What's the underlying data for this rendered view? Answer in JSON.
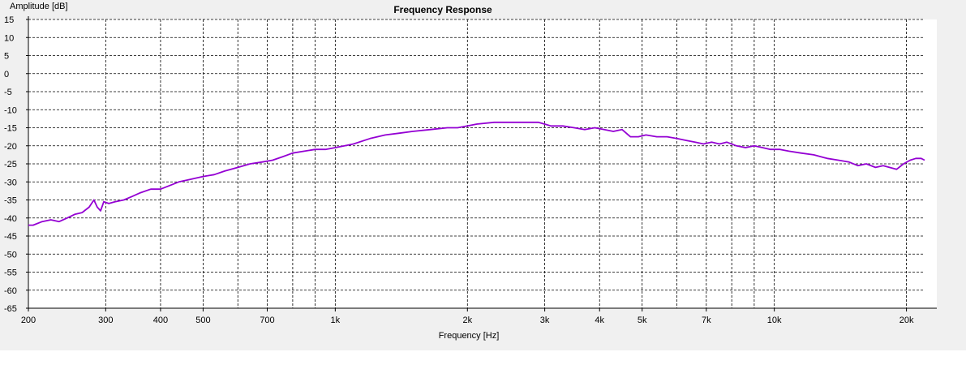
{
  "chart_data": {
    "type": "line",
    "title": "Frequency Response",
    "xlabel": "Frequency [Hz]",
    "ylabel": "Amplitude [dB]",
    "x_scale": "log",
    "xlim": [
      200,
      22000
    ],
    "ylim": [
      -65,
      15
    ],
    "grid": true,
    "y_ticks": [
      15,
      10,
      5,
      0,
      -5,
      -10,
      -15,
      -20,
      -25,
      -30,
      -35,
      -40,
      -45,
      -50,
      -55,
      -60,
      -65
    ],
    "x_ticks": [
      {
        "value": 200,
        "label": "200"
      },
      {
        "value": 300,
        "label": "300"
      },
      {
        "value": 400,
        "label": "400"
      },
      {
        "value": 500,
        "label": "500"
      },
      {
        "value": 700,
        "label": "700"
      },
      {
        "value": 1000,
        "label": "1k"
      },
      {
        "value": 2000,
        "label": "2k"
      },
      {
        "value": 3000,
        "label": "3k"
      },
      {
        "value": 4000,
        "label": "4k"
      },
      {
        "value": 5000,
        "label": "5k"
      },
      {
        "value": 7000,
        "label": "7k"
      },
      {
        "value": 10000,
        "label": "10k"
      },
      {
        "value": 20000,
        "label": "20k"
      }
    ],
    "x_gridlines": [
      200,
      300,
      400,
      500,
      600,
      700,
      800,
      900,
      1000,
      2000,
      3000,
      4000,
      5000,
      6000,
      7000,
      8000,
      9000,
      10000,
      20000
    ],
    "series": [
      {
        "color": "#9400d3",
        "x": [
          200,
          205,
          215,
          225,
          235,
          245,
          255,
          265,
          275,
          282,
          287,
          292,
          297,
          305,
          315,
          330,
          345,
          360,
          380,
          400,
          420,
          440,
          460,
          480,
          500,
          530,
          560,
          600,
          640,
          680,
          720,
          760,
          800,
          850,
          900,
          950,
          1000,
          1050,
          1100,
          1200,
          1300,
          1400,
          1500,
          1650,
          1800,
          1900,
          2000,
          2100,
          2300,
          2500,
          2700,
          2900,
          3000,
          3100,
          3300,
          3500,
          3700,
          3900,
          4100,
          4300,
          4500,
          4700,
          4900,
          5100,
          5400,
          5700,
          6000,
          6300,
          6600,
          6900,
          7200,
          7500,
          7800,
          8200,
          8600,
          9000,
          9400,
          9800,
          10300,
          10800,
          11500,
          12300,
          13200,
          14000,
          14800,
          15500,
          16200,
          17000,
          17700,
          18300,
          19000,
          19700,
          20400,
          21000,
          21600,
          22000
        ],
        "y": [
          -42,
          -42,
          -41,
          -40.5,
          -41,
          -40,
          -39,
          -38.5,
          -37,
          -35,
          -37,
          -38,
          -35.5,
          -36,
          -35.5,
          -35,
          -34,
          -33,
          -32,
          -32,
          -31,
          -30,
          -29.5,
          -29,
          -28.5,
          -28,
          -27,
          -26,
          -25,
          -24.5,
          -24,
          -23,
          -22,
          -21.5,
          -21,
          -21,
          -20.5,
          -20,
          -19.5,
          -18,
          -17,
          -16.5,
          -16,
          -15.5,
          -15,
          -15,
          -14.5,
          -14,
          -13.5,
          -13.5,
          -13.5,
          -13.5,
          -14,
          -14.5,
          -14.5,
          -15,
          -15.5,
          -15,
          -15.5,
          -16,
          -15.5,
          -17.5,
          -17.5,
          -17,
          -17.5,
          -17.5,
          -18,
          -18.5,
          -19,
          -19.5,
          -19,
          -19.5,
          -19,
          -20,
          -20.5,
          -20,
          -20.5,
          -21,
          -21,
          -21.5,
          -22,
          -22.5,
          -23.5,
          -24,
          -24.5,
          -25.5,
          -25,
          -26,
          -25.5,
          -26,
          -26.5,
          -25,
          -24,
          -23.5,
          -23.5,
          -24
        ]
      }
    ]
  }
}
